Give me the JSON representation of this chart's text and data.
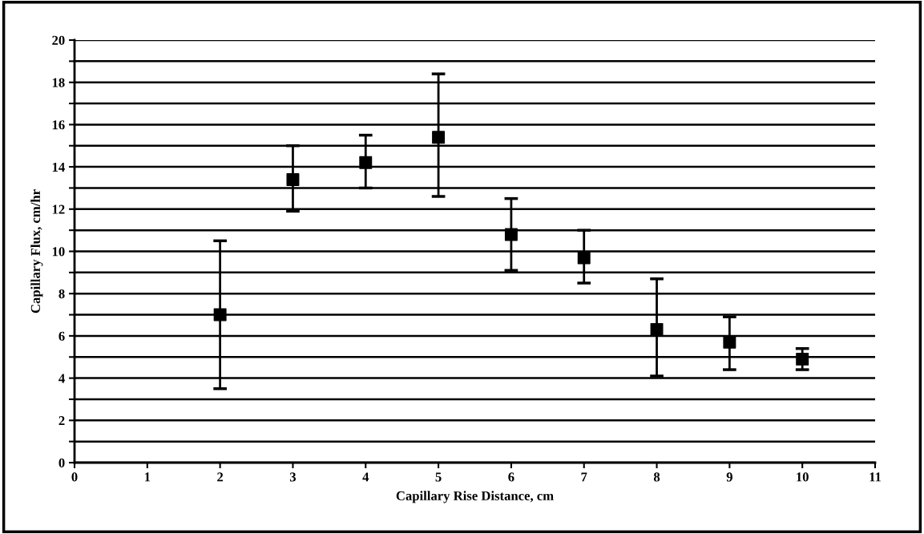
{
  "chart_data": {
    "type": "scatter",
    "xlabel": "Capillary Rise Distance, cm",
    "ylabel": "Capillary Flux, cm/hr",
    "x": [
      2,
      3,
      4,
      5,
      6,
      7,
      8,
      9,
      10
    ],
    "values": [
      7.0,
      13.4,
      14.2,
      15.4,
      10.8,
      9.7,
      6.3,
      5.7,
      4.9
    ],
    "errors": [
      [
        3.5,
        10.5
      ],
      [
        11.9,
        15.0
      ],
      [
        13.0,
        15.5
      ],
      [
        12.6,
        18.4
      ],
      [
        9.1,
        12.5
      ],
      [
        8.5,
        11.0
      ],
      [
        4.1,
        8.7
      ],
      [
        4.4,
        6.9
      ],
      [
        4.4,
        5.4
      ]
    ],
    "color": "#000000",
    "marker": "square",
    "xlim": [
      0,
      11
    ],
    "xticks": [
      0,
      1,
      2,
      3,
      4,
      5,
      6,
      7,
      8,
      9,
      10,
      11
    ],
    "ylim": [
      0,
      20
    ],
    "yticks": [
      0,
      {
        "value": 1,
        "label": null
      },
      2,
      {
        "value": 3,
        "label": null
      },
      4,
      {
        "value": 5,
        "label": null
      },
      6,
      {
        "value": 7,
        "label": null
      },
      8,
      {
        "value": 9,
        "label": null
      },
      10,
      {
        "value": 11,
        "label": null
      },
      12,
      {
        "value": 13,
        "label": null
      },
      14,
      {
        "value": 15,
        "label": null
      },
      16,
      {
        "value": 17,
        "label": null
      },
      18,
      {
        "value": 19,
        "label": null
      },
      20
    ],
    "grid": "y"
  }
}
